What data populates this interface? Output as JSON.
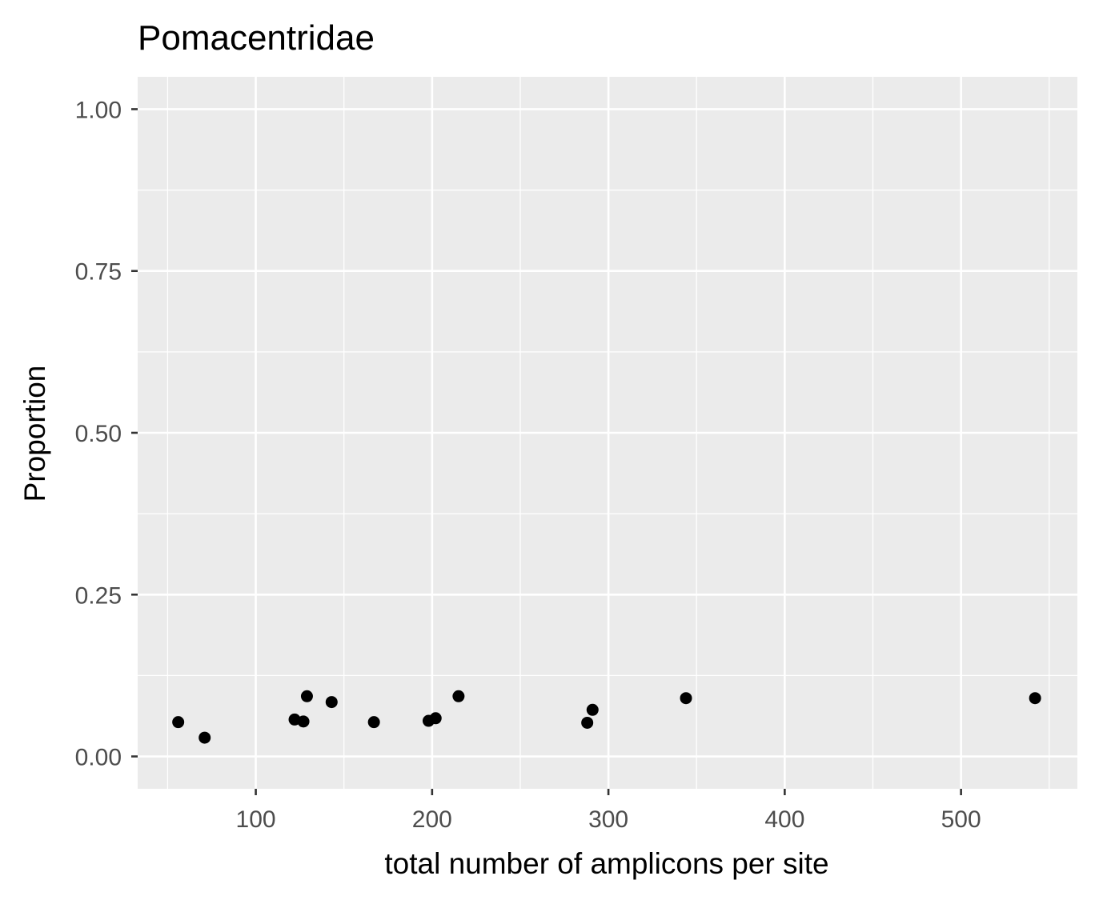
{
  "chart_data": {
    "type": "scatter",
    "title": "Pomacentridae",
    "xlabel": "total number of amplicons per site",
    "ylabel": "Proportion",
    "xlim": [
      33,
      566
    ],
    "ylim": [
      -0.05,
      1.05
    ],
    "x_ticks": [
      100,
      200,
      300,
      400,
      500
    ],
    "x_tick_labels": [
      "100",
      "200",
      "300",
      "400",
      "500"
    ],
    "x_minor_ticks": [
      50,
      150,
      250,
      350,
      450,
      550
    ],
    "y_ticks": [
      0,
      0.25,
      0.5,
      0.75,
      1.0
    ],
    "y_tick_labels": [
      "0.00",
      "0.25",
      "0.50",
      "0.75",
      "1.00"
    ],
    "y_minor_ticks": [
      0.125,
      0.375,
      0.625,
      0.875
    ],
    "grid": true,
    "legend": "none",
    "colors": {
      "panel_background": "#EBEBEB",
      "grid_line": "#FFFFFF",
      "point": "#000000",
      "tick_label": "#4D4D4D",
      "tick_mark": "#333333"
    },
    "points": [
      {
        "x": 56,
        "y": 0.053
      },
      {
        "x": 71,
        "y": 0.029
      },
      {
        "x": 122,
        "y": 0.057
      },
      {
        "x": 127,
        "y": 0.054
      },
      {
        "x": 129,
        "y": 0.093
      },
      {
        "x": 143,
        "y": 0.084
      },
      {
        "x": 167,
        "y": 0.053
      },
      {
        "x": 198,
        "y": 0.055
      },
      {
        "x": 202,
        "y": 0.059
      },
      {
        "x": 215,
        "y": 0.093
      },
      {
        "x": 288,
        "y": 0.052
      },
      {
        "x": 291,
        "y": 0.072
      },
      {
        "x": 344,
        "y": 0.09
      },
      {
        "x": 542,
        "y": 0.09
      }
    ]
  }
}
